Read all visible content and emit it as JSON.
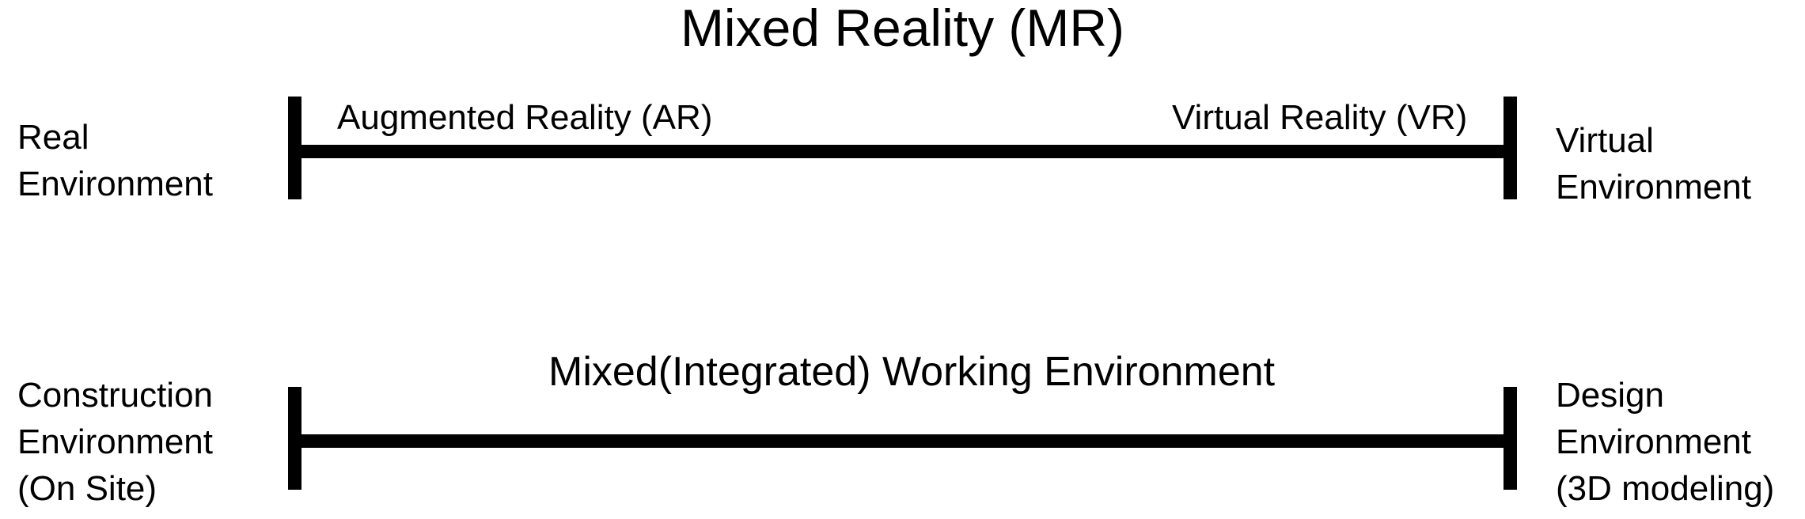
{
  "diagram": {
    "title": "Mixed Reality (MR)",
    "top_axis": {
      "left_endpoint_lines": [
        "Real",
        "Environment"
      ],
      "right_endpoint_lines": [
        "Virtual",
        "Environment"
      ],
      "left_inner_label": "Augmented Reality (AR)",
      "right_inner_label": "Virtual Reality (VR)"
    },
    "bottom_axis": {
      "center_label": "Mixed(Integrated) Working Environment",
      "left_endpoint_lines": [
        "Construction",
        "Environment",
        "(On Site)"
      ],
      "right_endpoint_lines": [
        "Design",
        "Environment",
        "(3D modeling)"
      ]
    },
    "colors": {
      "line": "#000000",
      "text": "#000000",
      "background": "#ffffff"
    }
  }
}
